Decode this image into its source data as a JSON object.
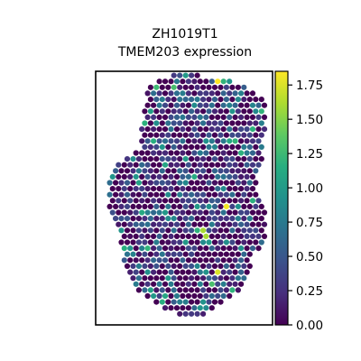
{
  "chart_data": {
    "type": "scatter",
    "title_line1": "ZH1019T1",
    "title_line2": "TMEM203 expression",
    "xlabel": "",
    "ylabel": "",
    "grid": false,
    "colormap": "viridis",
    "colormap_stops": [
      "#440154",
      "#472f7d",
      "#3b528b",
      "#2c728e",
      "#21918c",
      "#28ae80",
      "#5ec962",
      "#addc30",
      "#fde725"
    ],
    "colorbar": {
      "vmin": 0.0,
      "vmax": 1.85,
      "ticks": [
        0.0,
        0.25,
        0.5,
        0.75,
        1.0,
        1.25,
        1.5,
        1.75
      ],
      "tick_labels": [
        "0.00",
        "0.25",
        "0.50",
        "0.75",
        "1.00",
        "1.25",
        "1.50",
        "1.75"
      ]
    },
    "notable_spots": [
      {
        "x": 0.69,
        "y": 0.97,
        "value": 1.85
      },
      {
        "x": 0.74,
        "y": 0.47,
        "value": 1.82
      },
      {
        "x": 0.7,
        "y": 0.21,
        "value": 1.75
      },
      {
        "x": 0.61,
        "y": 0.36,
        "value": 1.6
      },
      {
        "x": 0.94,
        "y": 0.85,
        "value": 1.2
      },
      {
        "x": 0.35,
        "y": 0.93,
        "value": 1.25
      },
      {
        "x": 0.45,
        "y": 0.94,
        "value": 1.3
      },
      {
        "x": 0.24,
        "y": 0.84,
        "value": 1.15
      },
      {
        "x": 0.65,
        "y": 0.16,
        "value": 1.3
      },
      {
        "x": 0.25,
        "y": 0.55,
        "value": 1.05
      },
      {
        "x": 0.58,
        "y": 0.46,
        "value": 1.0
      },
      {
        "x": 0.3,
        "y": 0.3,
        "value": 1.2
      },
      {
        "x": 0.38,
        "y": 0.12,
        "value": 1.1
      },
      {
        "x": 0.8,
        "y": 0.73,
        "value": 1.2
      }
    ]
  }
}
